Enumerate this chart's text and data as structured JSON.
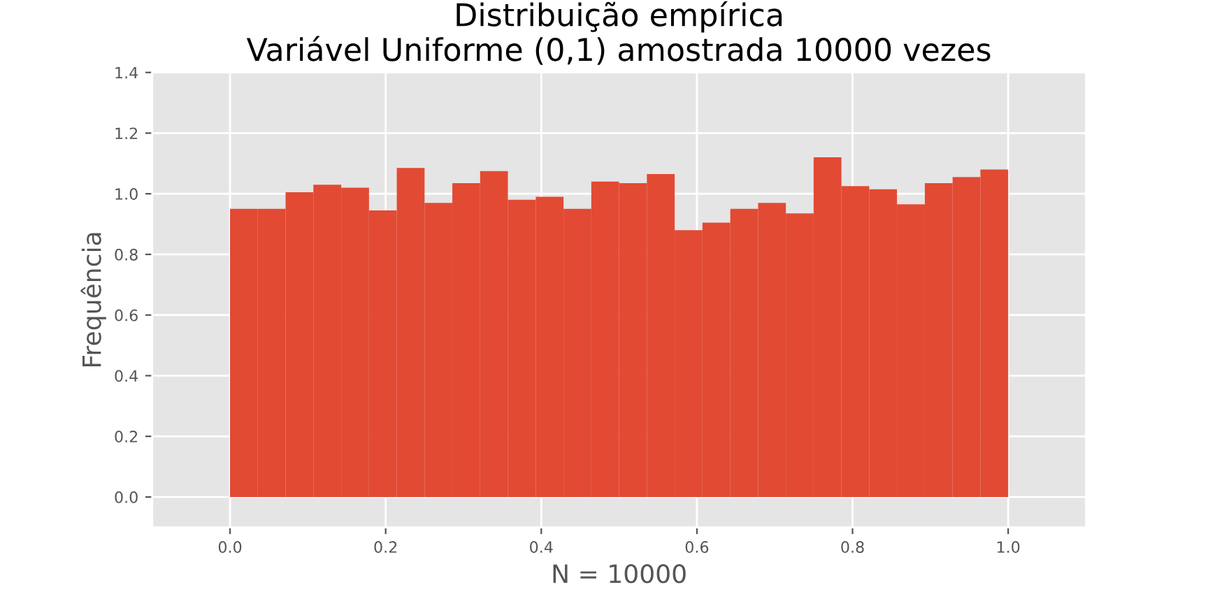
{
  "chart_data": {
    "type": "histogram",
    "title": "Distribuição empírica\nVariável Uniforme (0,1) amostrada 10000 vezes",
    "xlabel": "N = 10000",
    "ylabel": "Frequência",
    "bins": [
      0.0,
      0.0357,
      0.0714,
      0.1071,
      0.1429,
      0.1786,
      0.2143,
      0.25,
      0.2857,
      0.3214,
      0.3571,
      0.3929,
      0.4286,
      0.4643,
      0.5,
      0.5357,
      0.5714,
      0.6071,
      0.6429,
      0.6786,
      0.7143,
      0.75,
      0.7857,
      0.8214,
      0.8571,
      0.8929,
      0.9286,
      0.9643,
      1.0
    ],
    "values": [
      0.95,
      0.95,
      1.005,
      1.03,
      1.02,
      0.945,
      1.085,
      0.97,
      1.035,
      1.075,
      0.98,
      0.99,
      0.95,
      1.04,
      1.035,
      1.065,
      0.88,
      0.905,
      0.95,
      0.97,
      0.935,
      1.12,
      1.025,
      1.015,
      0.965,
      1.035,
      1.055,
      1.08
    ],
    "color": "#e24a33",
    "xlim": [
      -0.1,
      1.1
    ],
    "ylim": [
      -0.1,
      1.4
    ],
    "xticks": [
      {
        "value": 0,
        "label": "0.0"
      },
      0.2,
      0.4,
      0.6,
      0.8,
      {
        "value": 1,
        "label": "1.0"
      }
    ],
    "yticks": [
      {
        "value": 0,
        "label": "0.0"
      },
      0.2,
      0.4,
      0.6,
      0.8,
      {
        "value": 1,
        "label": "1.0"
      },
      1.2,
      1.4
    ],
    "grid": true
  }
}
